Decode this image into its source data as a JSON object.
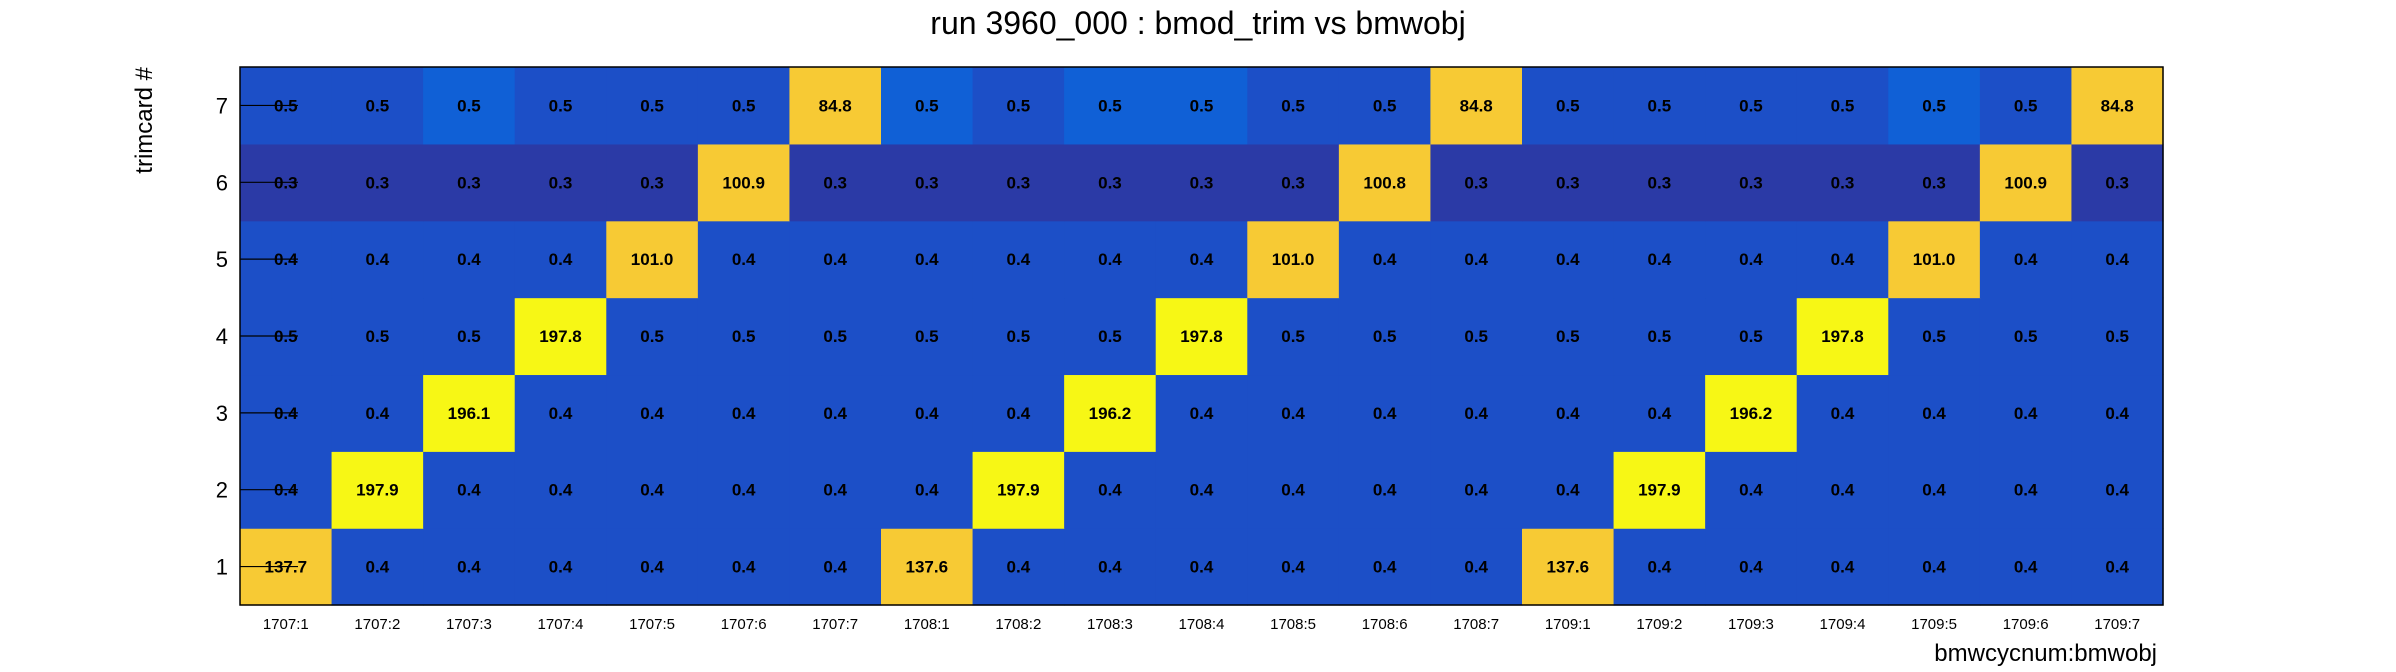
{
  "chart_data": {
    "type": "heatmap",
    "title": "run 3960_000 : bmod_trim vs bmwobj",
    "xlabel": "bmwcycnum:bmwobj",
    "ylabel": "trimcard #",
    "x_categories": [
      "1707:1",
      "1707:2",
      "1707:3",
      "1707:4",
      "1707:5",
      "1707:6",
      "1707:7",
      "1708:1",
      "1708:2",
      "1708:3",
      "1708:4",
      "1708:5",
      "1708:6",
      "1708:7",
      "1709:1",
      "1709:2",
      "1709:3",
      "1709:4",
      "1709:5",
      "1709:6",
      "1709:7"
    ],
    "y_categories": [
      "1",
      "2",
      "3",
      "4",
      "5",
      "6",
      "7"
    ],
    "cells": [
      [
        "137.7",
        "0.4",
        "0.4",
        "0.4",
        "0.4",
        "0.4",
        "0.4",
        "137.6",
        "0.4",
        "0.4",
        "0.4",
        "0.4",
        "0.4",
        "0.4",
        "137.6",
        "0.4",
        "0.4",
        "0.4",
        "0.4",
        "0.4",
        "0.4"
      ],
      [
        "0.4",
        "197.9",
        "0.4",
        "0.4",
        "0.4",
        "0.4",
        "0.4",
        "0.4",
        "197.9",
        "0.4",
        "0.4",
        "0.4",
        "0.4",
        "0.4",
        "0.4",
        "197.9",
        "0.4",
        "0.4",
        "0.4",
        "0.4",
        "0.4"
      ],
      [
        "0.4",
        "0.4",
        "196.1",
        "0.4",
        "0.4",
        "0.4",
        "0.4",
        "0.4",
        "0.4",
        "196.2",
        "0.4",
        "0.4",
        "0.4",
        "0.4",
        "0.4",
        "0.4",
        "196.2",
        "0.4",
        "0.4",
        "0.4",
        "0.4"
      ],
      [
        "0.5",
        "0.5",
        "0.5",
        "197.8",
        "0.5",
        "0.5",
        "0.5",
        "0.5",
        "0.5",
        "0.5",
        "197.8",
        "0.5",
        "0.5",
        "0.5",
        "0.5",
        "0.5",
        "0.5",
        "197.8",
        "0.5",
        "0.5",
        "0.5"
      ],
      [
        "0.4",
        "0.4",
        "0.4",
        "0.4",
        "101.0",
        "0.4",
        "0.4",
        "0.4",
        "0.4",
        "0.4",
        "0.4",
        "101.0",
        "0.4",
        "0.4",
        "0.4",
        "0.4",
        "0.4",
        "0.4",
        "101.0",
        "0.4",
        "0.4"
      ],
      [
        "0.3",
        "0.3",
        "0.3",
        "0.3",
        "0.3",
        "100.9",
        "0.3",
        "0.3",
        "0.3",
        "0.3",
        "0.3",
        "0.3",
        "100.8",
        "0.3",
        "0.3",
        "0.3",
        "0.3",
        "0.3",
        "0.3",
        "100.9",
        "0.3"
      ],
      [
        "0.5",
        "0.5",
        "0.5",
        "0.5",
        "0.5",
        "0.5",
        "84.8",
        "0.5",
        "0.5",
        "0.5",
        "0.5",
        "0.5",
        "0.5",
        "84.8",
        "0.5",
        "0.5",
        "0.5",
        "0.5",
        "0.5",
        "0.5",
        "84.8"
      ]
    ],
    "color_map": {
      "low": "#1c4fc7",
      "low_alt": "#1060d6",
      "row6_low": "#2b3aa6",
      "mid": "#f7ca34",
      "high": "#f7f715"
    },
    "grid": false,
    "legend": "none"
  }
}
